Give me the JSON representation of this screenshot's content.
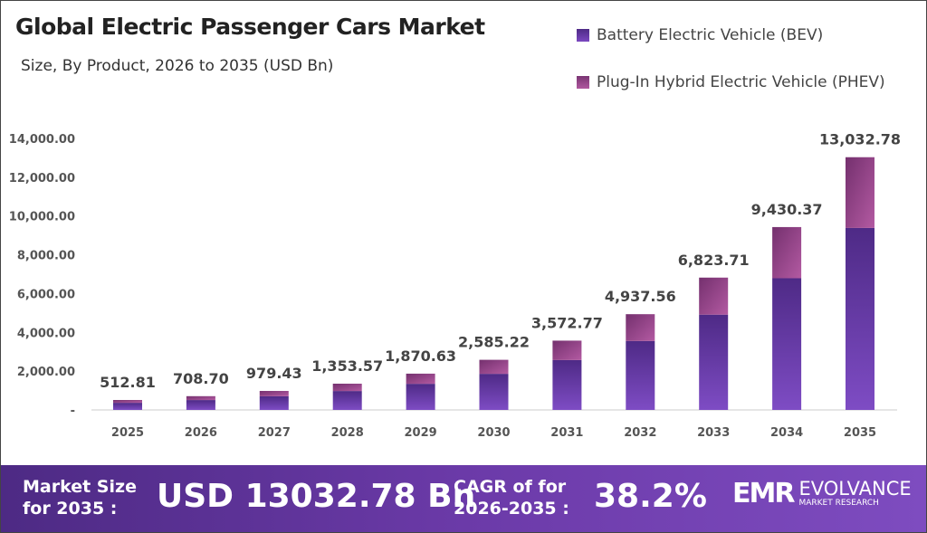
{
  "chart_data": {
    "type": "bar",
    "stacked": true,
    "title": "Global Electric Passenger Cars Market",
    "subtitle": "Size, By Product, 2026 to 2035 (USD Bn)",
    "categories": [
      "2025",
      "2026",
      "2027",
      "2028",
      "2029",
      "2030",
      "2031",
      "2032",
      "2033",
      "2034",
      "2035"
    ],
    "series": [
      {
        "name": "Battery Electric Vehicle (BEV)",
        "color": "#6a3aa6",
        "values": [
          369,
          510,
          705,
          975,
          1347,
          1861,
          2572,
          3555,
          4913,
          6790,
          9384
        ]
      },
      {
        "name": "Plug-In Hybrid Electric Vehicle (PHEV)",
        "color": "#a04d94",
        "values": [
          144,
          199,
          274,
          379,
          524,
          724,
          1001,
          1383,
          1911,
          2640,
          3649
        ]
      }
    ],
    "totals": [
      512.81,
      708.7,
      979.43,
      1353.57,
      1870.63,
      2585.22,
      3572.77,
      4937.56,
      6823.71,
      9430.37,
      13032.78
    ],
    "total_labels": [
      "512.81",
      "708.70",
      "979.43",
      "1,353.57",
      "1,870.63",
      "2,585.22",
      "3,572.77",
      "4,937.56",
      "6,823.71",
      "9,430.37",
      "13,032.78"
    ],
    "yticks": [
      "-",
      "2,000.00",
      "4,000.00",
      "6,000.00",
      "8,000.00",
      "10,000.00",
      "12,000.00",
      "14,000.00"
    ],
    "ylim": [
      0,
      14000
    ],
    "grid": false,
    "legend": "top-right"
  },
  "footer": {
    "market_label_1": "Market Size",
    "market_label_2": "for 2035 :",
    "market_value": "USD 13032.78 Bn",
    "cagr_label_1": "CAGR of for",
    "cagr_label_2": "2026-2035 :",
    "cagr_value": "38.2%",
    "logo_name": "EVOLVANCE",
    "logo_sub": "MARKET RESEARCH"
  }
}
